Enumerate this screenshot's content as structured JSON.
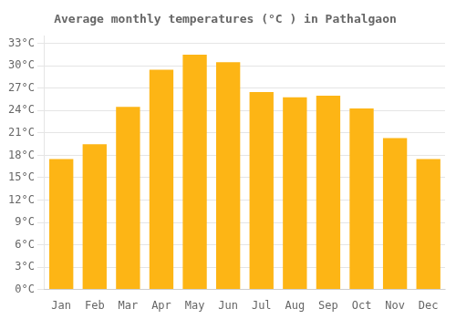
{
  "chart_data": {
    "type": "bar",
    "title": "Average monthly temperatures (°C ) in Pathalgaon",
    "categories": [
      "Jan",
      "Feb",
      "Mar",
      "Apr",
      "May",
      "Jun",
      "Jul",
      "Aug",
      "Sep",
      "Oct",
      "Nov",
      "Dec"
    ],
    "values": [
      17.5,
      19.5,
      24.5,
      29.5,
      31.5,
      30.5,
      26.5,
      25.8,
      26.0,
      24.3,
      20.3,
      17.5
    ],
    "color": "#FDB515",
    "ylim": [
      0,
      34
    ],
    "yticks": [
      {
        "value": 0,
        "label": "0°C"
      },
      {
        "value": 3,
        "label": "3°C"
      },
      {
        "value": 6,
        "label": "6°C"
      },
      {
        "value": 9,
        "label": "9°C"
      },
      {
        "value": 12,
        "label": "12°C"
      },
      {
        "value": 15,
        "label": "15°C"
      },
      {
        "value": 18,
        "label": "18°C"
      },
      {
        "value": 21,
        "label": "21°C"
      },
      {
        "value": 24,
        "label": "24°C"
      },
      {
        "value": 27,
        "label": "27°C"
      },
      {
        "value": 30,
        "label": "30°C"
      },
      {
        "value": 33,
        "label": "33°C"
      }
    ],
    "grid": true
  }
}
